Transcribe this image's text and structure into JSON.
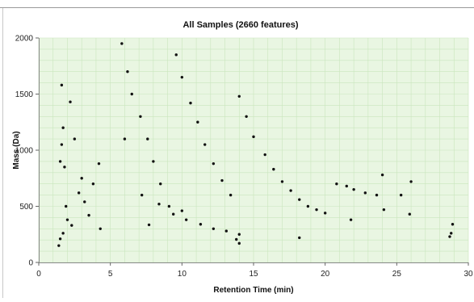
{
  "chart_data": {
    "type": "scatter",
    "title": "All Samples (2660 features)",
    "xlabel": "Retention Time (min)",
    "ylabel": "Mass (Da)",
    "xlim": [
      0,
      30
    ],
    "ylim": [
      0,
      2000
    ],
    "xticks": [
      "0",
      "5",
      "10",
      "15",
      "20",
      "25",
      "30"
    ],
    "yticks": [
      "0",
      "500",
      "1000",
      "1500",
      "2000"
    ],
    "grid": true,
    "legend": "none",
    "colors": {
      "plot_background": "#e9f6e2",
      "grid": "#c9e6bd",
      "point": "#111111"
    },
    "series": [
      {
        "name": "",
        "x": [
          1.4,
          1.5,
          1.6,
          1.7,
          1.8,
          1.9,
          2.0,
          2.2,
          2.5,
          3.0,
          3.5,
          1.6,
          1.7,
          1.5,
          2.3,
          2.8,
          3.2,
          3.8,
          4.2,
          4.3,
          5.8,
          6.2,
          6.5,
          7.1,
          7.6,
          8.0,
          8.5,
          9.1,
          9.6,
          10.0,
          10.6,
          11.1,
          11.6,
          12.2,
          12.8,
          13.4,
          14.0,
          14.5,
          15.0,
          15.8,
          16.4,
          17.0,
          17.6,
          18.2,
          18.8,
          19.4,
          20.0,
          20.8,
          21.5,
          22.0,
          22.8,
          23.6,
          24.1,
          24.0,
          25.3,
          25.9,
          26.0,
          28.7,
          28.8,
          28.9,
          6.0,
          7.2,
          8.4,
          9.4,
          10.3,
          11.3,
          12.2,
          13.1,
          14.0,
          7.7,
          10.0,
          13.8,
          14.0,
          18.2,
          21.8
        ],
        "y": [
          150,
          900,
          1580,
          1200,
          850,
          500,
          380,
          1430,
          1100,
          750,
          420,
          1050,
          260,
          210,
          330,
          620,
          540,
          700,
          880,
          300,
          1950,
          1700,
          1500,
          1300,
          1100,
          900,
          700,
          500,
          1850,
          1650,
          1420,
          1250,
          1050,
          880,
          730,
          600,
          1480,
          1300,
          1120,
          960,
          830,
          720,
          640,
          560,
          500,
          470,
          440,
          700,
          680,
          650,
          620,
          600,
          470,
          780,
          600,
          430,
          720,
          230,
          260,
          340,
          1100,
          600,
          520,
          430,
          380,
          340,
          300,
          280,
          250,
          335,
          460,
          205,
          170,
          220,
          380
        ]
      }
    ]
  }
}
